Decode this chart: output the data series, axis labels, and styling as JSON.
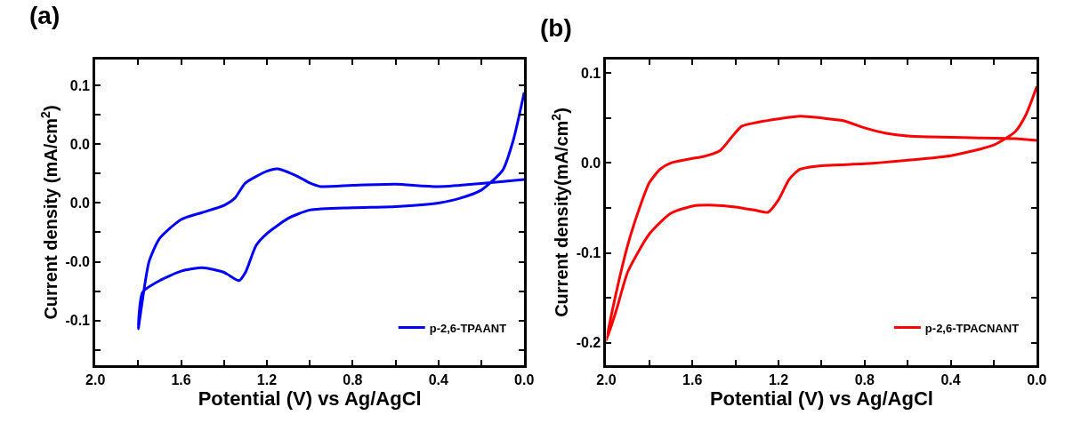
{
  "chart_data": [
    {
      "type": "line",
      "title": "(a)",
      "xlabel": "Potential (V) vs Ag/AgCl",
      "ylabel": "Current density (mA/cm$^{2}$)",
      "xlim": [
        2.0,
        0.0
      ],
      "ylim": [
        -0.138,
        0.122
      ],
      "xticks": [
        {
          "value": 2.0,
          "label": "2.0"
        },
        {
          "value": 1.8,
          "label": null
        },
        1.6,
        {
          "value": 1.4,
          "label": null
        },
        1.2,
        {
          "value": 1.0,
          "label": null
        },
        0.8,
        {
          "value": 0.6,
          "label": null
        },
        0.4,
        {
          "value": 0.2,
          "label": null
        },
        {
          "value": 0.0,
          "label": "0.0"
        }
      ],
      "yticks": [
        {
          "value": -0.125,
          "label": null
        },
        -0.1,
        {
          "value": -0.075,
          "label": null
        },
        {
          "value": -0.05,
          "label": "-0.0"
        },
        {
          "value": -0.025,
          "label": null
        },
        {
          "value": 0,
          "label": "0.0"
        },
        {
          "value": 0.025,
          "label": null
        },
        {
          "value": 0.05,
          "label": "0.0"
        },
        {
          "value": 0.075,
          "label": null
        },
        0.1
      ],
      "legend": "bottom right",
      "line_style": "solid",
      "marker": "none",
      "series": [
        {
          "name": "p-2,6-TPAANT",
          "color": "#0000ff",
          "x": [
            0.0,
            0.4,
            0.6,
            0.8,
            0.95,
            1.0,
            1.05,
            1.15,
            1.2,
            1.3,
            1.35,
            1.4,
            1.5,
            1.6,
            1.7,
            1.75,
            1.8,
            1.78,
            1.7,
            1.6,
            1.5,
            1.4,
            1.33,
            1.3,
            1.25,
            1.2,
            1.1,
            1.0,
            0.8,
            0.6,
            0.4,
            0.3,
            0.2,
            0.1,
            0.05,
            0.0
          ],
          "values": [
            0.02,
            0.014,
            0.016,
            0.015,
            0.014,
            0.017,
            0.022,
            0.029,
            0.027,
            0.017,
            0.004,
            -0.002,
            -0.008,
            -0.014,
            -0.03,
            -0.05,
            -0.107,
            -0.076,
            -0.066,
            -0.058,
            -0.055,
            -0.059,
            -0.066,
            -0.059,
            -0.036,
            -0.026,
            -0.013,
            -0.006,
            -0.004,
            -0.003,
            0.0,
            0.004,
            0.011,
            0.028,
            0.054,
            0.094
          ]
        }
      ]
    },
    {
      "type": "line",
      "title": "(b)",
      "xlabel": "Potential (V) vs Ag/AgCl",
      "ylabel": "Current density(mA/cm$^{2}$)",
      "xlim": [
        2.0,
        0.0
      ],
      "ylim": [
        -0.225,
        0.115
      ],
      "xticks": [
        {
          "value": 2.0,
          "label": "2.0"
        },
        {
          "value": 1.8,
          "label": null
        },
        1.6,
        {
          "value": 1.4,
          "label": null
        },
        1.2,
        {
          "value": 1.0,
          "label": null
        },
        0.8,
        {
          "value": 0.6,
          "label": null
        },
        0.4,
        {
          "value": 0.2,
          "label": null
        },
        {
          "value": 0.0,
          "label": "0.0"
        }
      ],
      "yticks": [
        -0.2,
        {
          "value": -0.15,
          "label": null
        },
        -0.1,
        {
          "value": -0.05,
          "label": null
        },
        {
          "value": 0,
          "label": "0.0"
        },
        {
          "value": 0.05,
          "label": null
        },
        0.1
      ],
      "legend": "bottom right",
      "line_style": "solid",
      "marker": "none",
      "series": [
        {
          "name": "p-2,6-TPACNANT",
          "color": "#ff0000",
          "x": [
            0.0,
            0.1,
            0.3,
            0.5,
            0.6,
            0.7,
            0.8,
            0.9,
            1.0,
            1.1,
            1.2,
            1.3,
            1.37,
            1.42,
            1.47,
            1.55,
            1.6,
            1.7,
            1.75,
            1.8,
            1.85,
            1.9,
            1.95,
            2.0,
            1.95,
            1.9,
            1.8,
            1.7,
            1.6,
            1.5,
            1.4,
            1.3,
            1.25,
            1.2,
            1.15,
            1.1,
            1.0,
            0.8,
            0.6,
            0.4,
            0.2,
            0.1,
            0.05,
            0.0
          ],
          "values": [
            0.025,
            0.027,
            0.028,
            0.029,
            0.03,
            0.033,
            0.039,
            0.047,
            0.05,
            0.052,
            0.049,
            0.045,
            0.041,
            0.028,
            0.014,
            0.007,
            0.005,
            0.0,
            -0.007,
            -0.022,
            -0.053,
            -0.091,
            -0.14,
            -0.198,
            -0.161,
            -0.121,
            -0.079,
            -0.056,
            -0.048,
            -0.047,
            -0.049,
            -0.053,
            -0.055,
            -0.041,
            -0.018,
            -0.007,
            -0.003,
            -0.001,
            0.003,
            0.008,
            0.02,
            0.035,
            0.054,
            0.085
          ]
        }
      ]
    }
  ]
}
